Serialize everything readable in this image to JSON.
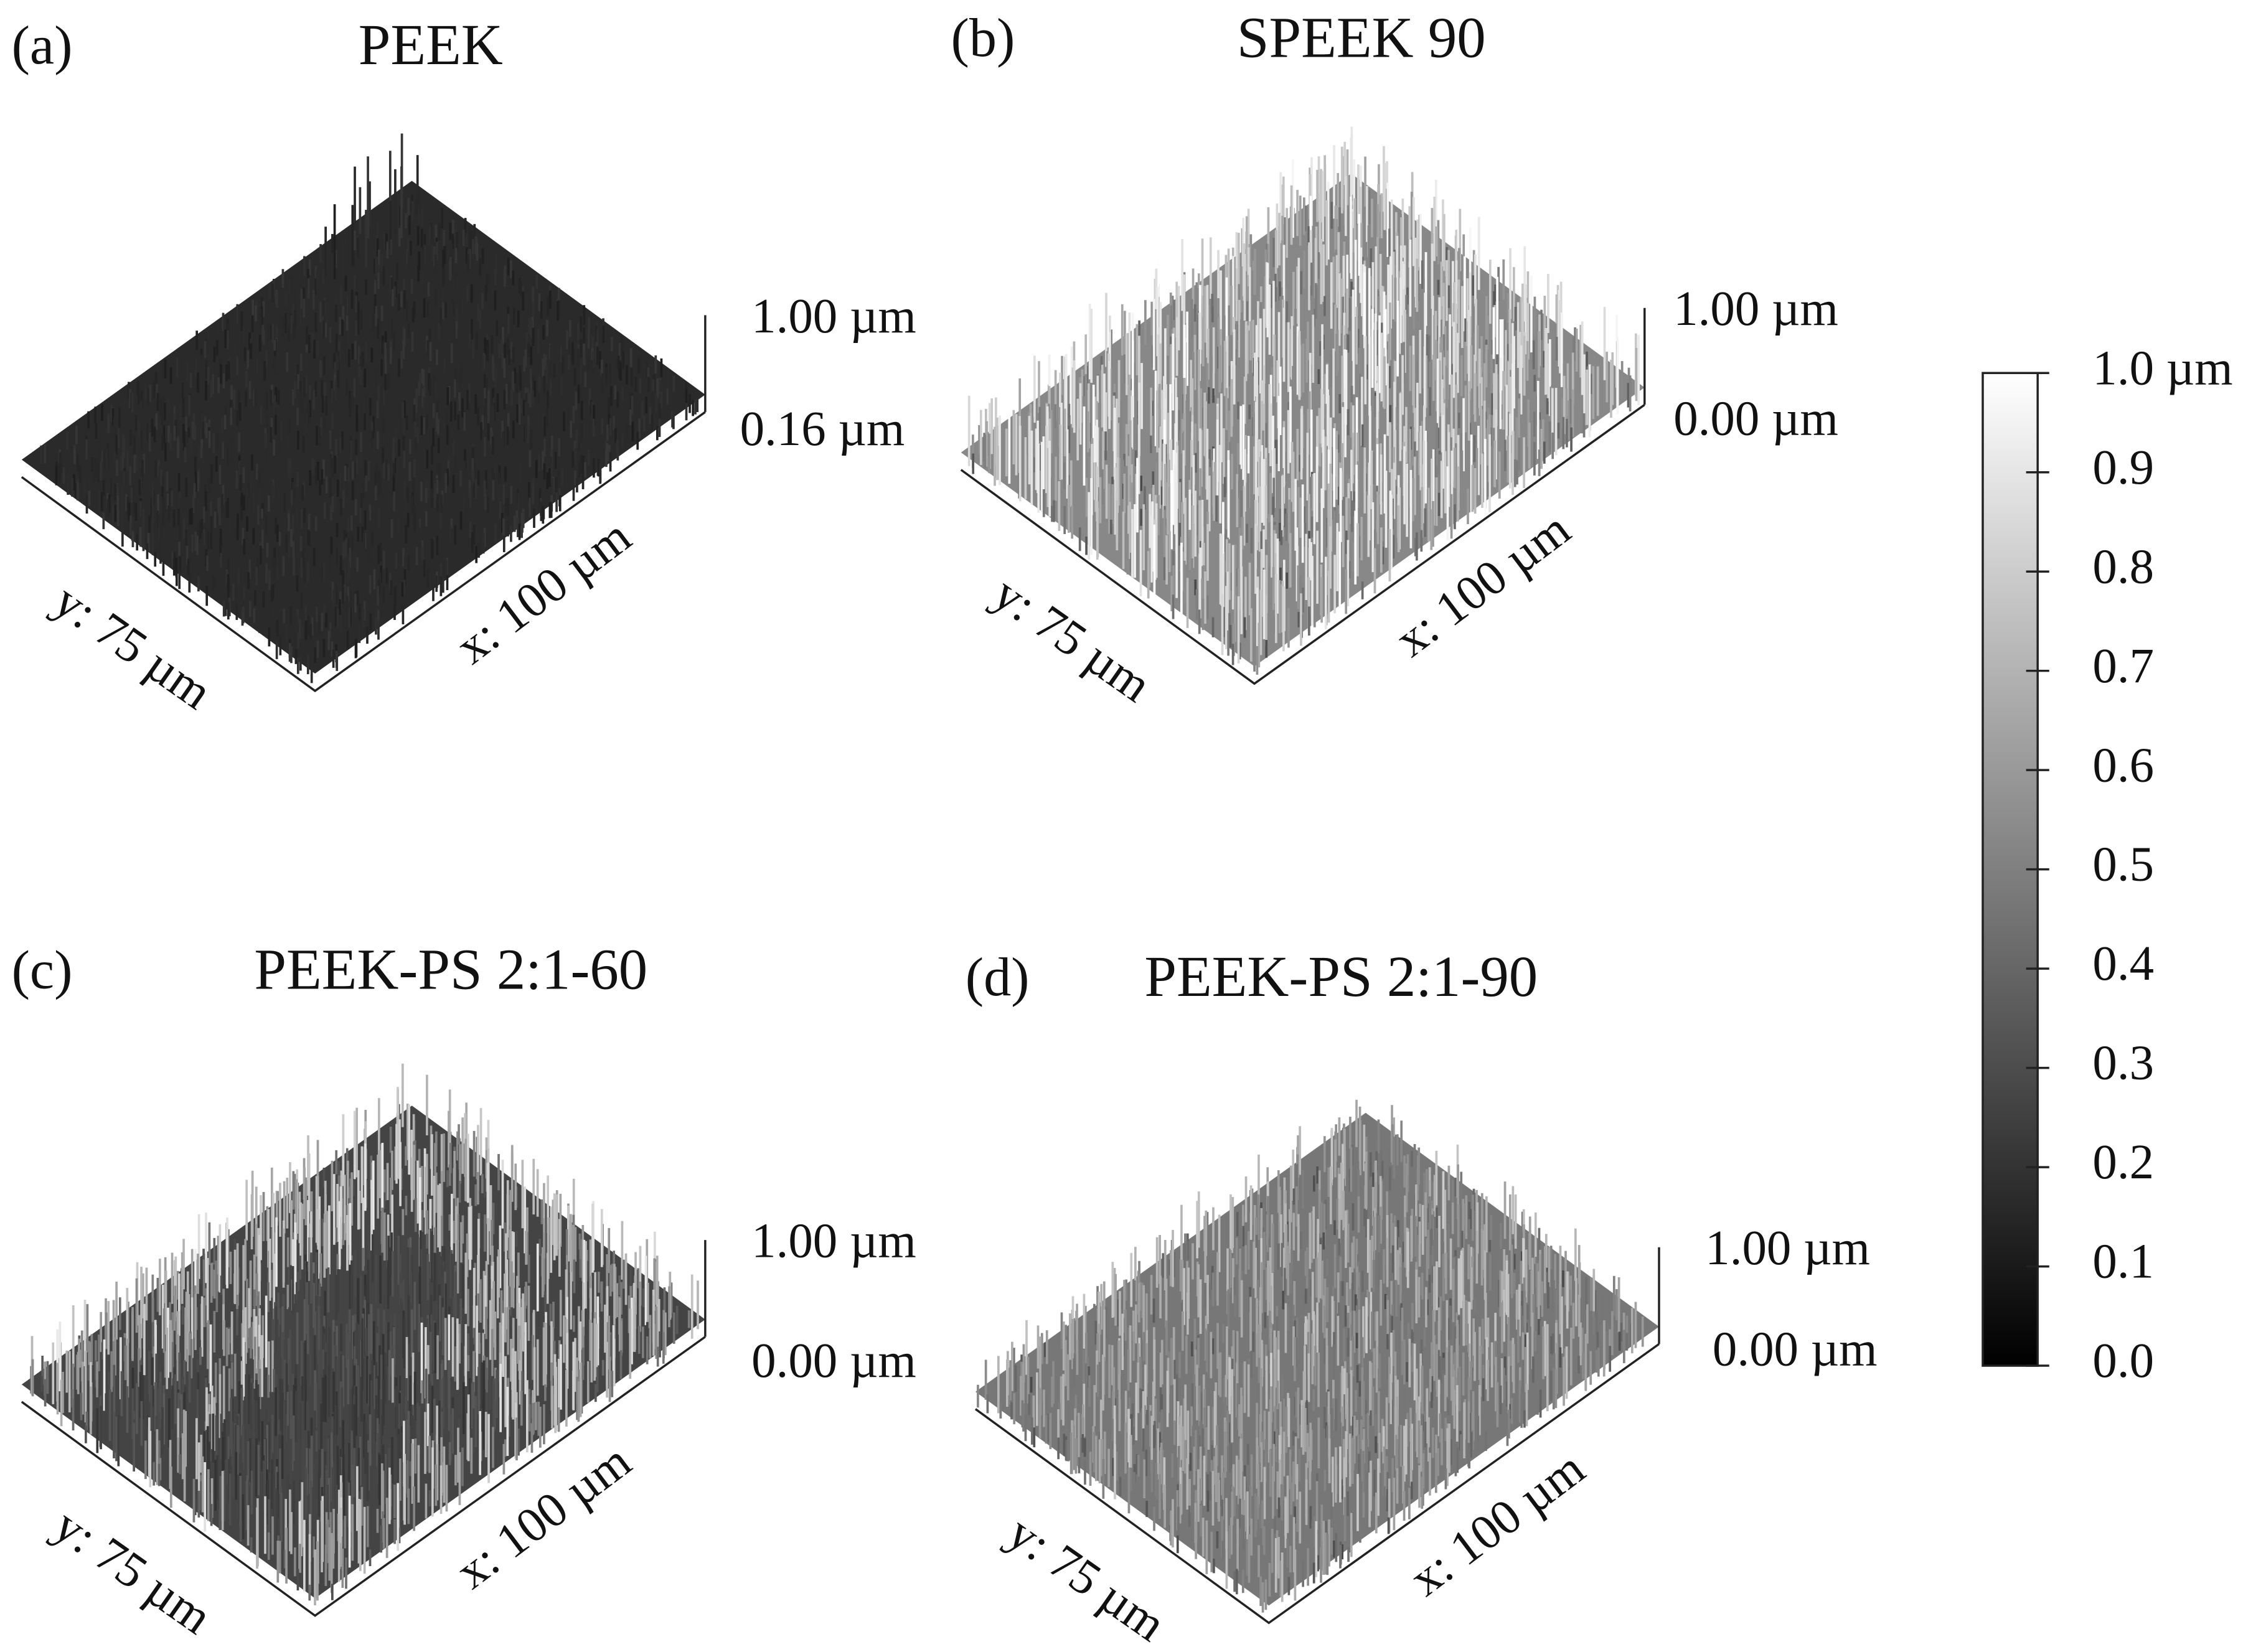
{
  "panels": [
    {
      "label": "(a)",
      "title": "PEEK",
      "z_top": "1.00 µm",
      "z_bottom": "0.16 µm",
      "y_axis": "y: 75 µm",
      "x_axis": "x: 100 µm"
    },
    {
      "label": "(b)",
      "title": "SPEEK 90",
      "z_top": "1.00 µm",
      "z_bottom": "0.00 µm",
      "y_axis": "y: 75 µm",
      "x_axis": "x: 100 µm"
    },
    {
      "label": "(c)",
      "title": "PEEK-PS 2:1-60",
      "z_top": "1.00 µm",
      "z_bottom": "0.00 µm",
      "y_axis": "y: 75 µm",
      "x_axis": "x: 100 µm"
    },
    {
      "label": "(d)",
      "title": "PEEK-PS 2:1-90",
      "z_top": "1.00 µm",
      "z_bottom": "0.00 µm",
      "y_axis": "y: 75 µm",
      "x_axis": "x: 100 µm"
    }
  ],
  "colorbar": {
    "top_label": "1.0 µm",
    "ticks": [
      "0.0",
      "0.1",
      "0.2",
      "0.3",
      "0.4",
      "0.5",
      "0.6",
      "0.7",
      "0.8",
      "0.9"
    ]
  }
}
